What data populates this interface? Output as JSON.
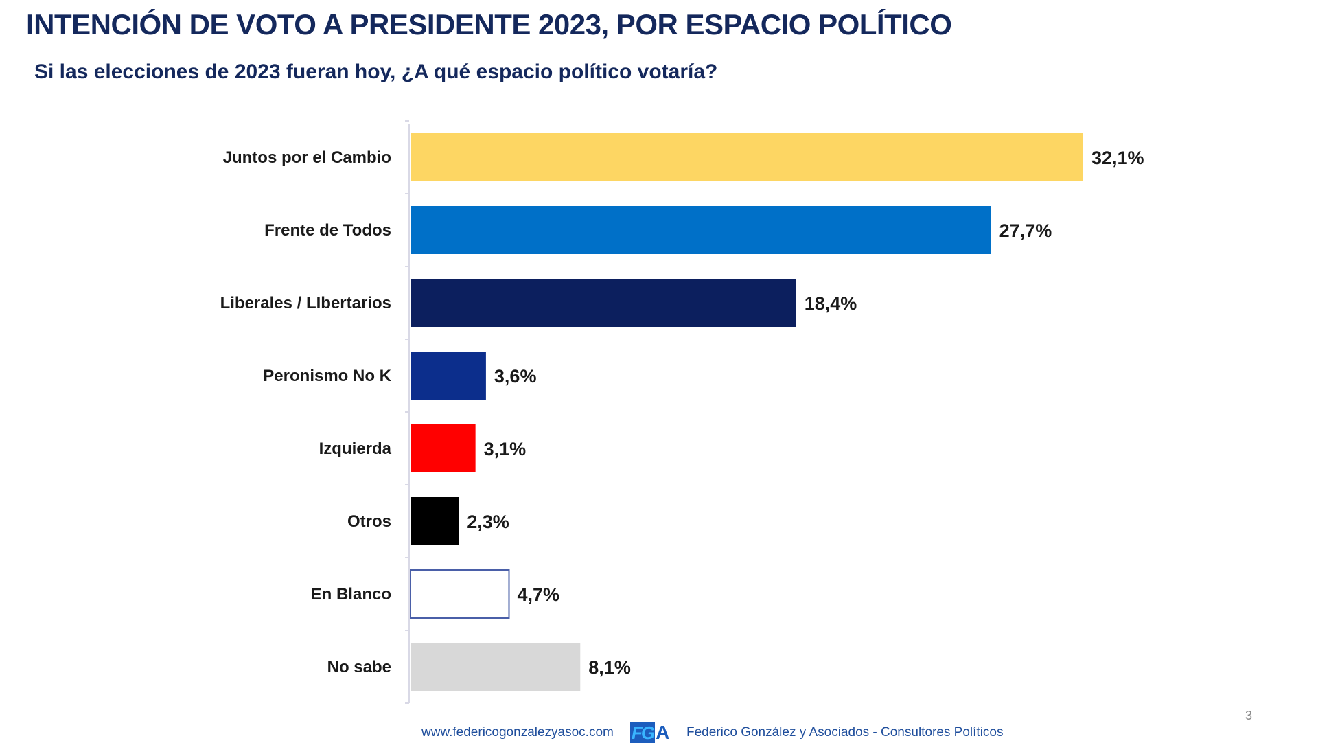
{
  "header": {
    "title": "INTENCIÓN DE VOTO A PRESIDENTE 2023, POR ESPACIO POLÍTICO",
    "subtitle": "Si las elecciones de 2023 fueran hoy, ¿A qué espacio político votaría?"
  },
  "chart_data": {
    "type": "bar",
    "orientation": "horizontal",
    "title": "INTENCIÓN DE VOTO A PRESIDENTE 2023, POR ESPACIO POLÍTICO",
    "subtitle": "Si las elecciones de 2023 fueran hoy, ¿A qué espacio político votaría?",
    "xlabel": "",
    "ylabel": "",
    "xlim": [
      0,
      32.1
    ],
    "grid": false,
    "legend": "none",
    "categories": [
      "Juntos por el Cambio",
      "Frente de Todos",
      "Liberales / LIbertarios",
      "Peronismo No K",
      "Izquierda",
      "Otros",
      "En Blanco",
      "No sabe"
    ],
    "values": [
      32.1,
      27.7,
      18.4,
      3.6,
      3.1,
      2.3,
      4.7,
      8.1
    ],
    "value_labels": [
      "32,1%",
      "27,7%",
      "18,4%",
      "3,6%",
      "3,1%",
      "2,3%",
      "4,7%",
      "8,1%"
    ],
    "colors": [
      "#fdd663",
      "#0070c8",
      "#0c1f5e",
      "#0c2e8c",
      "#ff0000",
      "#000000",
      "#ffffff",
      "#d8d8d8"
    ],
    "outline_colors": [
      null,
      null,
      null,
      null,
      null,
      null,
      "#4a5fa8",
      null
    ]
  },
  "footer": {
    "url": "www.federicogonzalezyasoc.com",
    "logo_fg": "FG",
    "logo_a": "A",
    "company": "Federico González y Asociados - Consultores Políticos",
    "page_number": "3"
  }
}
